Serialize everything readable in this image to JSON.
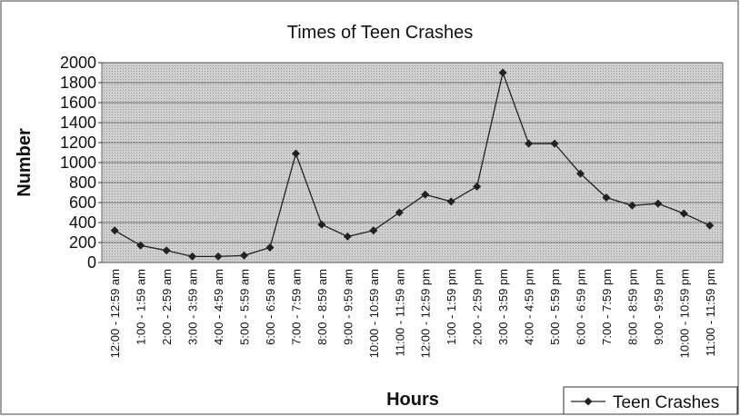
{
  "chart_data": {
    "type": "line",
    "title": "Times of Teen Crashes",
    "x_label": "Hours",
    "y_label": "Number",
    "categories": [
      "12:00 - 12:59  am",
      "1:00 - 1:59 am",
      "2:00 - 2:59 am",
      "3:00 - 3:59 am",
      "4:00 - 4:59 am",
      "5:00 - 5:59 am",
      "6:00 - 6:59 am",
      "7:00 - 7:59 am",
      "8:00 - 8:59 am",
      "9:00 - 9:59 am",
      "10:00 - 10:59 am",
      "11:00 - 11:59 am",
      "12:00 - 12:59 pm",
      "1:00 - 1:59 pm",
      "2:00 - 2:59 pm",
      "3:00 - 3:59 pm",
      "4:00 - 4:59 pm",
      "5:00 - 5:59 pm",
      "6:00 - 6:59 pm",
      "7:00 - 7:59 pm",
      "8:00 - 8:59 pm",
      "9:00 - 9:59 pm",
      "10:00 - 10:59 pm",
      "11:00 - 11:59 pm"
    ],
    "series": [
      {
        "name": "Teen Crashes",
        "color": "#222222",
        "values": [
          320,
          170,
          120,
          60,
          60,
          70,
          150,
          1090,
          380,
          260,
          320,
          500,
          680,
          610,
          760,
          1900,
          1190,
          1190,
          890,
          650,
          570,
          590,
          490,
          370
        ]
      }
    ],
    "ylim": [
      0,
      2000
    ],
    "yticks": [
      0,
      200,
      400,
      600,
      800,
      1000,
      1200,
      1400,
      1600,
      1800,
      2000
    ],
    "grid": true,
    "legend": "bottom-right"
  }
}
